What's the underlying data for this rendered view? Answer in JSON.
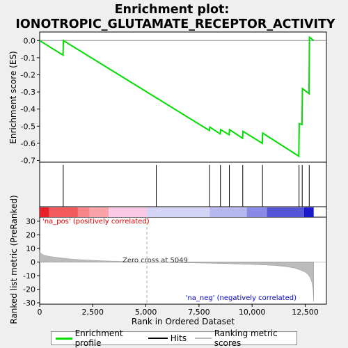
{
  "chart_data": {
    "type": "line",
    "title_line1": "Enrichment plot:",
    "title_line2": "IONOTROPIC_GLUTAMATE_RECEPTOR_ACTIVITY",
    "xlabel": "Rank in Ordered Dataset",
    "ylabel_top": "Enrichment score (ES)",
    "ylabel_bottom": "Ranked list metric (PreRanked)",
    "xlim": [
      0,
      13500
    ],
    "x_ticks": [
      0,
      2500,
      5000,
      7500,
      10000,
      12500
    ],
    "x_tick_labels": [
      "0",
      "2,500",
      "5,000",
      "7,500",
      "10,000",
      "12,500"
    ],
    "es_ylim": [
      -0.71,
      0.05
    ],
    "es_ticks": [
      0.0,
      -0.1,
      -0.2,
      -0.3,
      -0.4,
      -0.5,
      -0.6,
      -0.7
    ],
    "es_tick_labels": [
      "0.0",
      "-0.1",
      "-0.2",
      "-0.3",
      "-0.4",
      "-0.5",
      "-0.6",
      "-0.7"
    ],
    "metric_ylim": [
      -31,
      33
    ],
    "metric_ticks": [
      30,
      20,
      10,
      0,
      -10,
      -20,
      -30
    ],
    "metric_tick_labels": [
      "30",
      "20",
      "10",
      "0",
      "-10",
      "-20",
      "-30"
    ],
    "es_curve": {
      "x": [
        0,
        1100,
        1115,
        7990,
        8010,
        8500,
        8520,
        8920,
        8940,
        9550,
        9570,
        10480,
        10500,
        12200,
        12220,
        12350,
        12370,
        12680,
        12700,
        12900
      ],
      "y": [
        0.0,
        -0.085,
        0.0,
        -0.525,
        -0.505,
        -0.545,
        -0.52,
        -0.55,
        -0.52,
        -0.57,
        -0.53,
        -0.6,
        -0.54,
        -0.675,
        -0.485,
        -0.49,
        -0.28,
        -0.31,
        0.02,
        0.0
      ]
    },
    "hits": [
      1110,
      5490,
      8000,
      8510,
      8930,
      9560,
      10490,
      12210,
      12360,
      12690
    ],
    "metric_curve": {
      "x": [
        0,
        50,
        200,
        500,
        1000,
        1500,
        2000,
        3000,
        4000,
        5049,
        6000,
        7000,
        8000,
        9000,
        10000,
        11000,
        11500,
        12000,
        12300,
        12500,
        12650,
        12750,
        12820,
        12870,
        12900
      ],
      "y": [
        8.5,
        6.5,
        5.0,
        4.0,
        3.0,
        2.2,
        1.6,
        0.9,
        0.4,
        0.0,
        -0.3,
        -0.6,
        -0.9,
        -1.3,
        -1.8,
        -2.5,
        -3.2,
        -4.5,
        -6.0,
        -7.5,
        -9.5,
        -12.0,
        -15.0,
        -20.0,
        -29.0
      ]
    },
    "zero_cross": 5049,
    "zero_cross_label": "Zero cross at 5049",
    "pos_label": "'na_pos' (positively correlated)",
    "neg_label": "'na_neg' (negatively correlated)",
    "heat_segments": [
      {
        "x0": 0,
        "x1": 450,
        "color": "#e8202a"
      },
      {
        "x0": 450,
        "x1": 1800,
        "color": "#f25a5e"
      },
      {
        "x0": 1800,
        "x1": 2350,
        "color": "#f7858a"
      },
      {
        "x0": 2350,
        "x1": 3250,
        "color": "#f9a3a8"
      },
      {
        "x0": 3250,
        "x1": 5049,
        "color": "#fbc8e6"
      },
      {
        "x0": 5049,
        "x1": 8000,
        "color": "#d4d4f7"
      },
      {
        "x0": 8000,
        "x1": 9750,
        "color": "#b8b8f0"
      },
      {
        "x0": 9750,
        "x1": 10700,
        "color": "#8a8ae6"
      },
      {
        "x0": 10700,
        "x1": 12450,
        "color": "#5555d8"
      },
      {
        "x0": 12450,
        "x1": 12900,
        "color": "#1a1acc"
      }
    ],
    "legend": [
      {
        "label": "Enrichment profile",
        "color": "#00dd00"
      },
      {
        "label": "Hits",
        "color": "#000000"
      },
      {
        "label": "Ranking metric scores",
        "color": "#bbbbbb"
      }
    ]
  }
}
